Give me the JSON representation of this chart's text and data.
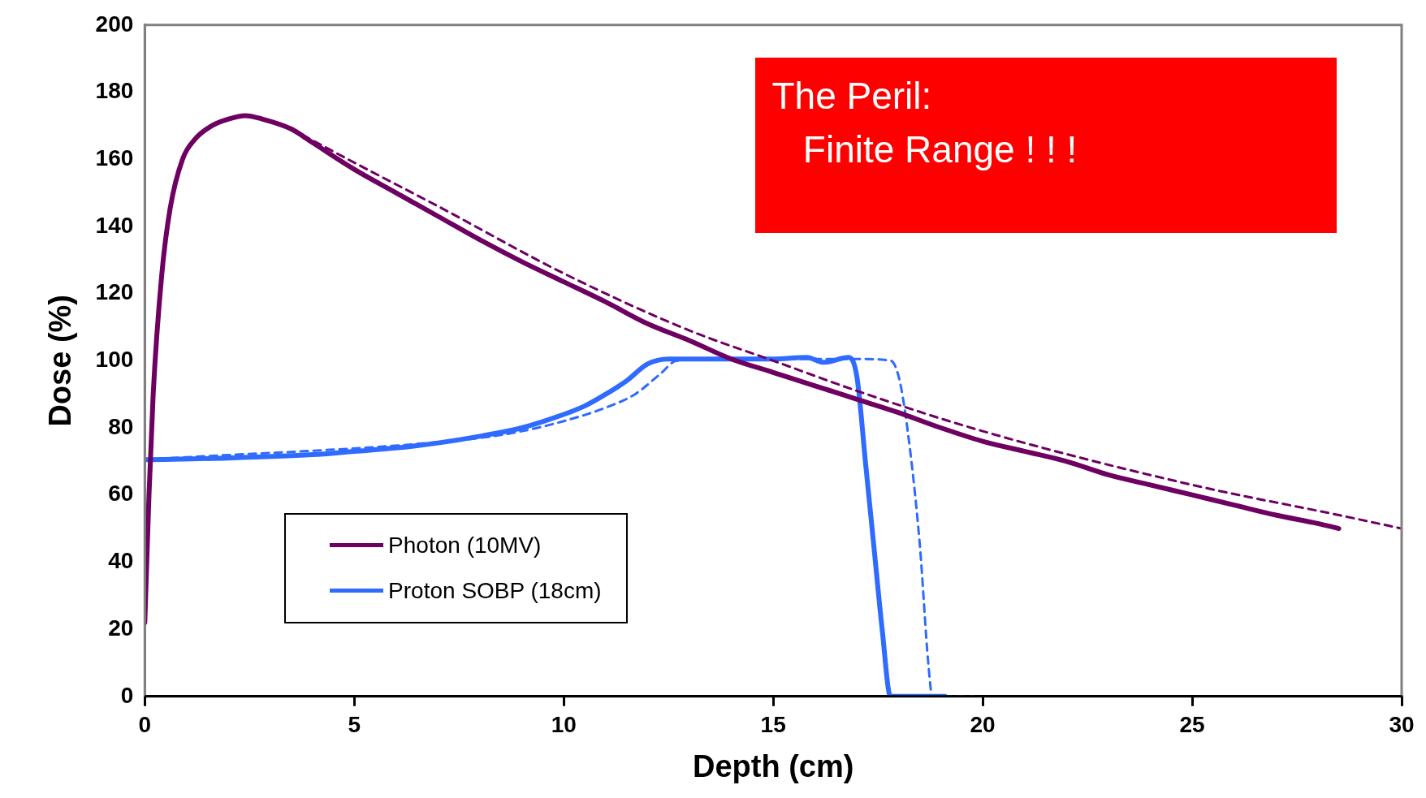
{
  "chart_data": {
    "type": "line",
    "xlabel": "Depth (cm)",
    "ylabel": "Dose (%)",
    "xlim": [
      0,
      30
    ],
    "xticks": [
      0,
      5,
      10,
      15,
      20,
      25,
      30
    ],
    "ylim": [
      0,
      200
    ],
    "yticks": [
      0,
      20,
      40,
      60,
      80,
      100,
      120,
      140,
      160,
      180,
      200
    ],
    "grid": false,
    "legend": "bottom left",
    "marker": "none",
    "annotations": [
      "The Peril:\n   Finite Range ! ! !"
    ],
    "series": [
      {
        "name": "Photon (10MV)",
        "color": "#6e0062",
        "line_style": "solid",
        "x": [
          0,
          0.1,
          0.2,
          0.4,
          0.6,
          0.9,
          1.2,
          1.6,
          2.0,
          2.4,
          2.8,
          3.5,
          4,
          5,
          6,
          7,
          8,
          9,
          10,
          11,
          12,
          13,
          14,
          15,
          16,
          17,
          18,
          19,
          20,
          21,
          22,
          23,
          24,
          25,
          26,
          27,
          28,
          28.5
        ],
        "values": [
          22,
          60,
          90,
          125,
          145,
          160,
          166,
          170,
          172,
          173,
          172,
          169,
          165,
          157,
          150,
          143,
          136,
          129.5,
          123.5,
          117.5,
          111,
          106,
          100.5,
          96.5,
          92.5,
          88.5,
          84.5,
          80,
          76,
          73,
          70,
          66,
          63,
          60,
          57,
          54,
          51.5,
          50
        ]
      },
      {
        "color": "#6e0062",
        "line_style": "dashed",
        "x": [
          3.5,
          5,
          7,
          10,
          13,
          15,
          17,
          20,
          25,
          28.5,
          30
        ],
        "values": [
          169,
          159,
          146,
          126,
          109,
          100,
          91,
          79,
          63,
          54,
          50
        ]
      },
      {
        "name": "Proton SOBP (18cm)",
        "color": "#2f6bff",
        "line_style": "solid",
        "x": [
          0,
          2,
          4,
          5,
          6,
          7,
          8,
          9,
          10,
          10.5,
          11,
          11.5,
          12,
          12.5,
          13,
          14,
          15,
          15.8,
          16.2,
          16.8,
          17.0,
          17.2,
          17.4,
          17.6,
          17.8,
          19.1
        ],
        "values": [
          70.5,
          71,
          72,
          73,
          74,
          75.5,
          77.5,
          80,
          84,
          86.5,
          90,
          94,
          99,
          100.5,
          100.5,
          100.5,
          100.5,
          101,
          99.5,
          101,
          95,
          70,
          45,
          20,
          0,
          0
        ]
      },
      {
        "color": "#2f6bff",
        "line_style": "dashed",
        "x": [
          0,
          8,
          9,
          10,
          11,
          11.7,
          12.3,
          12.7,
          14,
          17,
          17.8,
          18,
          18.2,
          18.5,
          18.7,
          18.8,
          19.8
        ],
        "values": [
          70.5,
          77,
          79,
          82,
          86,
          90,
          96,
          100,
          100.5,
          100.5,
          100,
          95,
          80,
          45,
          10,
          0,
          0
        ]
      }
    ]
  }
}
